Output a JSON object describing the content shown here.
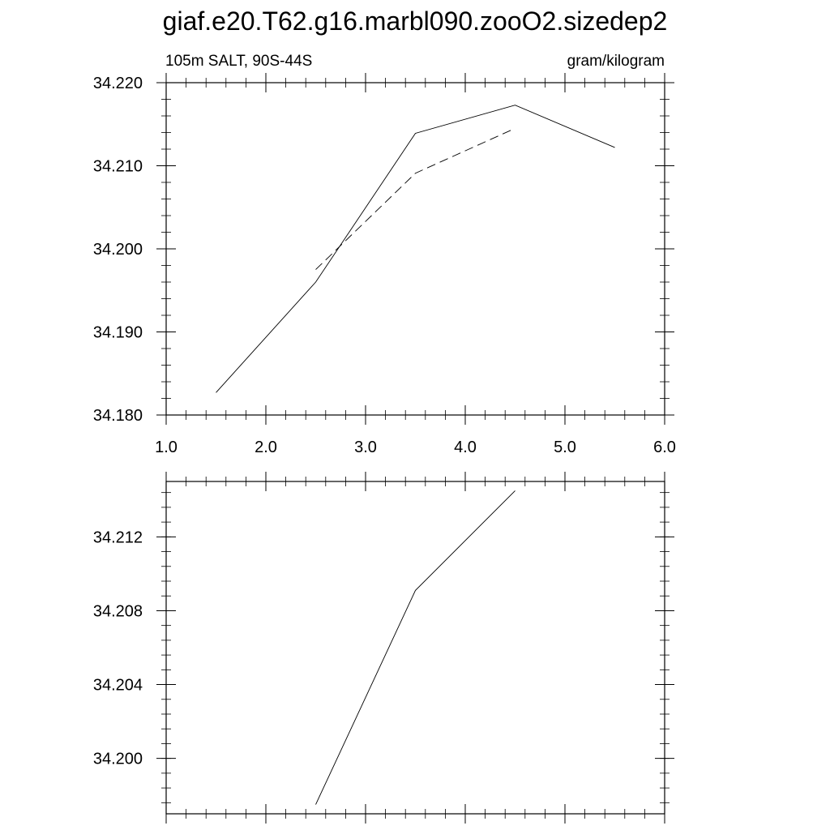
{
  "title": "giaf.e20.T62.g16.marbl090.zooO2.sizedep2",
  "left_string": "105m SALT, 90S-44S",
  "right_string": "gram/kilogram",
  "chart_data": [
    {
      "type": "line",
      "xlim": [
        1.0,
        6.0
      ],
      "ylim": [
        34.18,
        34.22
      ],
      "xticks": [
        1.0,
        2.0,
        3.0,
        4.0,
        5.0,
        6.0
      ],
      "xtick_labels": [
        "1.0",
        "2.0",
        "3.0",
        "4.0",
        "5.0",
        "6.0"
      ],
      "yticks": [
        34.18,
        34.19,
        34.2,
        34.21,
        34.22
      ],
      "ytick_labels": [
        "34.180",
        "34.190",
        "34.200",
        "34.210",
        "34.220"
      ],
      "grid": false,
      "series": [
        {
          "style": "solid",
          "x": [
            1.5,
            2.5,
            3.5,
            4.5,
            5.5
          ],
          "y": [
            34.1827,
            34.196,
            34.2139,
            34.2173,
            34.2122
          ]
        },
        {
          "style": "dashed",
          "x": [
            2.5,
            3.5,
            4.5
          ],
          "y": [
            34.1975,
            34.2091,
            34.2145
          ]
        }
      ]
    },
    {
      "type": "line",
      "xlim": [
        1.0,
        6.0
      ],
      "ylim": [
        34.197,
        34.215
      ],
      "xticks": [
        1.0,
        2.0,
        3.0,
        4.0,
        5.0,
        6.0
      ],
      "xtick_labels": [],
      "yticks": [
        34.2,
        34.204,
        34.208,
        34.212
      ],
      "ytick_labels": [
        "34.200",
        "34.204",
        "34.208",
        "34.212"
      ],
      "grid": false,
      "series": [
        {
          "style": "solid",
          "x": [
            2.5,
            3.5,
            4.5
          ],
          "y": [
            34.1975,
            34.2091,
            34.2145
          ]
        }
      ]
    }
  ]
}
